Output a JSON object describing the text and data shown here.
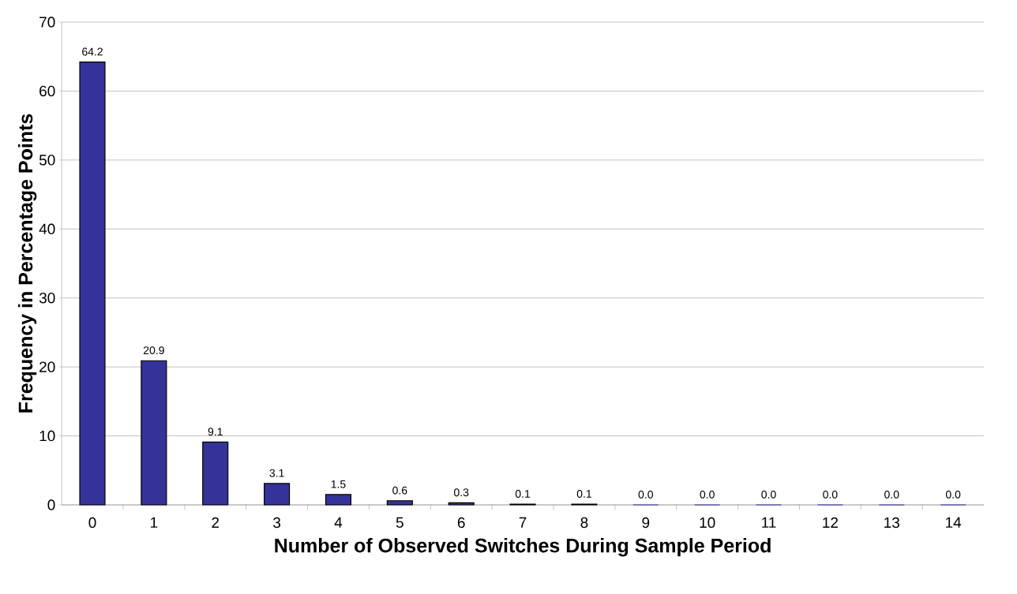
{
  "chart_data": {
    "type": "bar",
    "xlabel": "Number of Observed Switches During Sample Period",
    "ylabel": "Frequency in Percentage Points",
    "categories": [
      "0",
      "1",
      "2",
      "3",
      "4",
      "5",
      "6",
      "7",
      "8",
      "9",
      "10",
      "11",
      "12",
      "13",
      "14"
    ],
    "values": [
      64.2,
      20.9,
      9.1,
      3.1,
      1.5,
      0.6,
      0.3,
      0.1,
      0.1,
      0.0,
      0.0,
      0.0,
      0.0,
      0.0,
      0.0
    ],
    "value_labels": [
      "64.2",
      "20.9",
      "9.1",
      "3.1",
      "1.5",
      "0.6",
      "0.3",
      "0.1",
      "0.1",
      "0.0",
      "0.0",
      "0.0",
      "0.0",
      "0.0",
      "0.0"
    ],
    "color": "#333399",
    "ylim": [
      0,
      70
    ],
    "yticks": [
      0,
      10,
      20,
      30,
      40,
      50,
      60,
      70
    ],
    "grid": "y"
  }
}
